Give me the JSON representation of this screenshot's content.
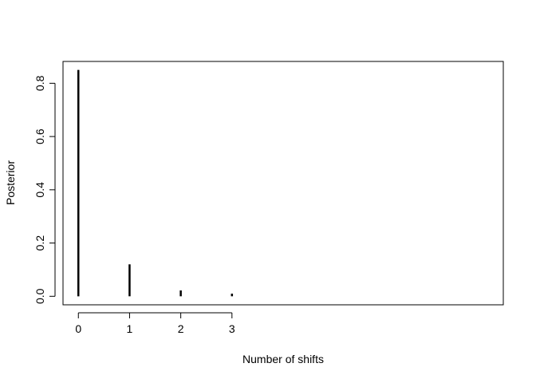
{
  "chart_data": {
    "type": "bar",
    "style": "vertical lines (R type='h')",
    "title": "",
    "xlabel": "Number of shifts",
    "ylabel": "Posterior",
    "x": [
      0,
      1,
      2,
      3
    ],
    "x_tick_labels": [
      "0",
      "1",
      "2",
      "3"
    ],
    "values": [
      0.85,
      0.12,
      0.022,
      0.01
    ],
    "y_ticks": [
      0.0,
      0.2,
      0.4,
      0.6,
      0.8
    ],
    "y_tick_labels": [
      "0.0",
      "0.2",
      "0.4",
      "0.6",
      "0.8"
    ],
    "xlim": [
      -0.3,
      8.3
    ],
    "ylim": [
      -0.032,
      0.882
    ],
    "grid": false,
    "legend": "none",
    "colors": {
      "line": "#000000",
      "axis": "#000000",
      "background": "#ffffff"
    }
  }
}
